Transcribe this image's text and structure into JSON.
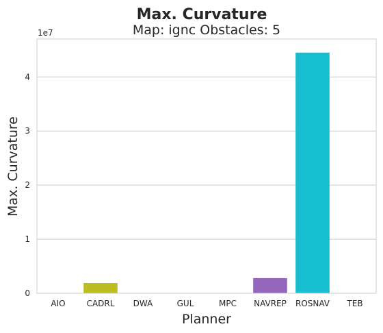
{
  "figure": {
    "suptitle": "Max. Curvature"
  },
  "chart_data": {
    "type": "bar",
    "title": "Map: ignc Obstacles: 5",
    "xlabel": "Planner",
    "ylabel": "Max. Curvature",
    "y_offset_label": "1e7",
    "categories": [
      "AIO",
      "CADRL",
      "DWA",
      "GUL",
      "MPC",
      "NAVREP",
      "ROSNAV",
      "TEB"
    ],
    "values": [
      0,
      1900000,
      0,
      0,
      0,
      2800000,
      44500000,
      0
    ],
    "colors": [
      "#1f77b4",
      "#bcbd22",
      "#2ca02c",
      "#d62728",
      "#ff7f0e",
      "#9467bd",
      "#17becf",
      "#8c564b"
    ],
    "ylim": [
      0,
      47000000
    ],
    "yticks": [
      0,
      10000000,
      20000000,
      30000000,
      40000000
    ],
    "ytick_labels": [
      "0",
      "1",
      "2",
      "3",
      "4"
    ],
    "grid": "horizontal",
    "legend": "none"
  }
}
